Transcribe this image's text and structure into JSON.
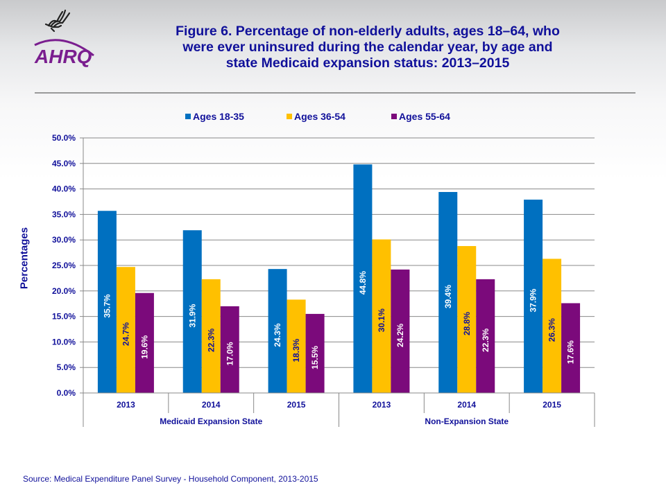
{
  "header": {
    "logo_text": "AHRQ",
    "title_lines": [
      "Figure 6. Percentage of non-elderly adults, ages 18–64, who",
      "were ever uninsured during the calendar year, by age and",
      "state Medicaid expansion status: 2013–2015"
    ]
  },
  "colors": {
    "title": "#10109a",
    "series": [
      "#0070c0",
      "#ffc000",
      "#7b0a7b"
    ],
    "label_on_blue": "#ffffff",
    "label_on_yellow": "#10109a",
    "label_on_purple": "#ffffff",
    "logo": "#7a1e8f"
  },
  "chart_data": {
    "type": "bar",
    "title": "Figure 6. Percentage of non-elderly adults, ages 18–64, who were ever uninsured during the calendar year, by age and state Medicaid expansion status: 2013–2015",
    "xlabel": "",
    "ylabel": "Percentages",
    "ylim": [
      0,
      50
    ],
    "yticks": [
      "0.0%",
      "5.0%",
      "10.0%",
      "15.0%",
      "20.0%",
      "25.0%",
      "30.0%",
      "35.0%",
      "40.0%",
      "45.0%",
      "50.0%"
    ],
    "ytick_values": [
      0,
      5,
      10,
      15,
      20,
      25,
      30,
      35,
      40,
      45,
      50
    ],
    "grid": true,
    "legend_position": "top",
    "categories": [
      "2013",
      "2014",
      "2015",
      "2013",
      "2014",
      "2015"
    ],
    "category_groups": [
      {
        "label": "Medicaid Expansion State",
        "span": 3
      },
      {
        "label": "Non-Expansion State",
        "span": 3
      }
    ],
    "series": [
      {
        "name": "Ages 18-35",
        "values": [
          35.7,
          31.9,
          24.3,
          44.8,
          39.4,
          37.9
        ]
      },
      {
        "name": "Ages 36-54",
        "values": [
          24.7,
          22.3,
          18.3,
          30.1,
          28.8,
          26.3
        ]
      },
      {
        "name": "Ages 55-64",
        "values": [
          19.6,
          17.0,
          15.5,
          24.2,
          22.3,
          17.6
        ]
      }
    ],
    "data_labels": [
      [
        "35.7%",
        "31.9%",
        "24.3%",
        "44.8%",
        "39.4%",
        "37.9%"
      ],
      [
        "24.7%",
        "22.3%",
        "18.3%",
        "30.1%",
        "28.8%",
        "26.3%"
      ],
      [
        "19.6%",
        "17.0%",
        "15.5%",
        "24.2%",
        "22.3%",
        "17.6%"
      ]
    ]
  },
  "footer": {
    "source": "Source:  Medical Expenditure Panel Survey - Household Component, 2013-2015"
  }
}
